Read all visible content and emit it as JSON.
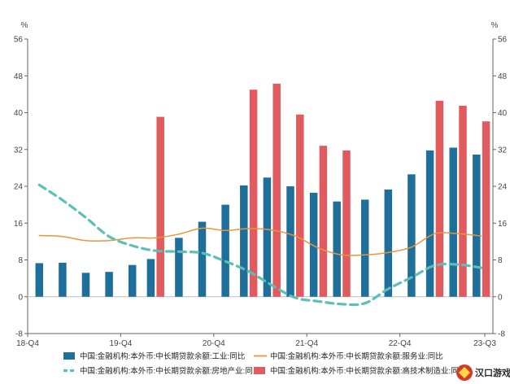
{
  "chart_data": {
    "type": "bar",
    "y_unit_left": "%",
    "y_unit_right": "%",
    "ylim": [
      -8,
      56
    ],
    "yticks": [
      -8,
      0,
      8,
      16,
      24,
      32,
      40,
      48,
      56
    ],
    "x": [
      "18-Q4",
      "19-Q1",
      "19-Q2",
      "19-Q3",
      "19-Q4",
      "20-Q1",
      "20-Q2",
      "20-Q3",
      "20-Q4",
      "21-Q1",
      "21-Q2",
      "21-Q3",
      "21-Q4",
      "22-Q1",
      "22-Q2",
      "22-Q3",
      "22-Q4",
      "23-Q1",
      "23-Q2",
      "23-Q3"
    ],
    "xtick_labels": [
      "18-Q4",
      "19-Q4",
      "20-Q4",
      "21-Q4",
      "22-Q4",
      "23-Q3"
    ],
    "grid": false,
    "legend_position": "bottom",
    "series": [
      {
        "name": "中国:金融机构:本外币:中长期贷款余额:工业:同比",
        "kind": "bar",
        "color": "#1f6f9b",
        "values": [
          7.3,
          7.4,
          5.2,
          5.4,
          6.9,
          8.2,
          12.8,
          16.3,
          20.0,
          24.2,
          25.9,
          24.0,
          22.6,
          20.7,
          21.1,
          23.3,
          26.6,
          31.8,
          32.4,
          30.9
        ]
      },
      {
        "name": "中国:金融机构:本外币:中长期贷款余额:服务业:同比",
        "kind": "line",
        "style": "solid",
        "color": "#e8963a",
        "values": [
          13.3,
          13.1,
          12.2,
          12.2,
          12.8,
          12.8,
          13.6,
          14.9,
          14.4,
          14.8,
          14.5,
          13.2,
          10.6,
          9.1,
          9.1,
          9.6,
          10.8,
          13.7,
          13.7,
          13.2
        ]
      },
      {
        "name": "中国:金融机构:本外币:中长期贷款余额:房地产业:同比",
        "kind": "line",
        "style": "dashed",
        "color": "#5cbfb8",
        "values": [
          24.3,
          21.0,
          17.2,
          13.1,
          11.1,
          10.0,
          9.8,
          9.5,
          7.7,
          5.5,
          2.5,
          -0.2,
          -1.0,
          -1.6,
          -1.4,
          1.7,
          4.2,
          6.8,
          7.0,
          6.3
        ]
      },
      {
        "name": "中国:金融机构:本外币:中长期贷款余额:高技术制造业:同比",
        "kind": "bar",
        "color": "#e05a5e",
        "values": [
          null,
          null,
          null,
          null,
          null,
          39.1,
          null,
          null,
          null,
          45.0,
          46.3,
          39.6,
          32.8,
          31.8,
          null,
          null,
          null,
          42.6,
          41.5,
          38.1
        ]
      }
    ]
  },
  "legend": [
    {
      "label": "中国:金融机构:本外币:中长期贷款余额:工业:同比",
      "symbol": "bar",
      "color": "#1f6f9b"
    },
    {
      "label": "中国:金融机构:本外币:中长期贷款余额:服务业:同比",
      "symbol": "line",
      "color": "#e8963a"
    },
    {
      "label": "中国:金融机构:本外币:中长期贷款余额:房地产业:同比",
      "symbol": "dash",
      "color": "#5cbfb8"
    },
    {
      "label": "中国:金融机构:本外币:中长期贷款余额:高技术制造业:同比",
      "symbol": "bar",
      "color": "#e05a5e"
    }
  ],
  "watermark": {
    "text": "汉口游戏网"
  }
}
